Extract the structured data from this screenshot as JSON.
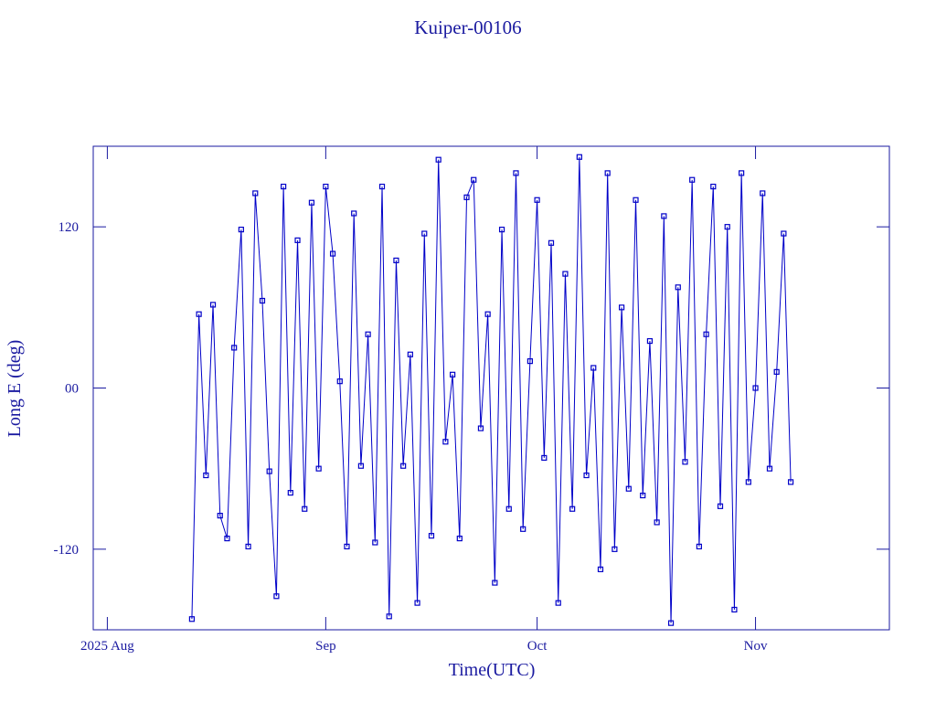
{
  "chart_data": {
    "type": "line",
    "title": "Kuiper-00106",
    "xlabel": "Time(UTC)",
    "ylabel": "Long E (deg)",
    "x": [
      225,
      226,
      227,
      228,
      229,
      230,
      231,
      232,
      233,
      234,
      235,
      236,
      237,
      238,
      239,
      240,
      241,
      242,
      243,
      244,
      245,
      246,
      247,
      248,
      249,
      250,
      251,
      252,
      253,
      254,
      255,
      256,
      257,
      258,
      259,
      260,
      261,
      262,
      263,
      264,
      265,
      266,
      267,
      268,
      269,
      270,
      271,
      272,
      273,
      274,
      275,
      276,
      277,
      278,
      279,
      280,
      281,
      282,
      283,
      284,
      285,
      286,
      287,
      288,
      289,
      290,
      291,
      292,
      293,
      294,
      295,
      296,
      297,
      298,
      299,
      300,
      301,
      302,
      303,
      304,
      305,
      306,
      307,
      308,
      309,
      310
    ],
    "series": [
      {
        "name": "Kuiper-00106",
        "color": "#0000c8",
        "values": [
          -172,
          55,
          -65,
          62,
          -95,
          -112,
          30,
          118,
          -118,
          145,
          65,
          -62,
          -155,
          150,
          -78,
          110,
          -90,
          138,
          -60,
          150,
          100,
          5,
          -118,
          130,
          -58,
          40,
          -115,
          150,
          -170,
          95,
          -58,
          25,
          -160,
          115,
          -110,
          170,
          -40,
          10,
          -112,
          142,
          155,
          -30,
          55,
          -145,
          118,
          -90,
          160,
          -105,
          20,
          140,
          -52,
          108,
          -160,
          85,
          -90,
          172,
          -65,
          15,
          -135,
          160,
          -120,
          60,
          -75,
          140,
          -80,
          35,
          -100,
          128,
          -175,
          75,
          -55,
          155,
          -118,
          40,
          150,
          -88,
          120,
          -165,
          160,
          -70,
          0,
          145,
          -60,
          12,
          115,
          -70
        ]
      }
    ],
    "xlim": [
      211,
      324
    ],
    "xticks": [
      {
        "value": 213,
        "label": "2025 Aug"
      },
      {
        "value": 244,
        "label": "Sep"
      },
      {
        "value": 274,
        "label": "Oct"
      },
      {
        "value": 305,
        "label": "Nov"
      }
    ],
    "ylim": [
      -180,
      180
    ],
    "yticks": [
      -120,
      {
        "value": 0,
        "label": "00"
      },
      120
    ]
  }
}
